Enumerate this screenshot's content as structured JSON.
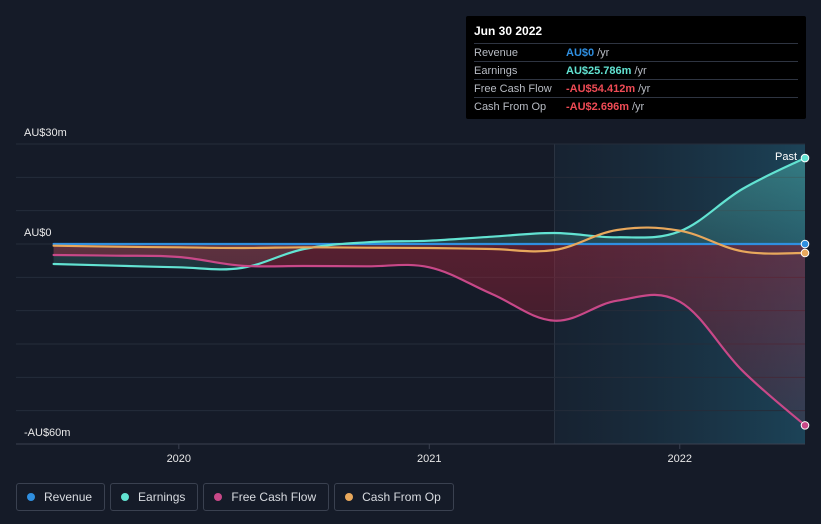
{
  "tooltip": {
    "date": "Jun 30 2022",
    "rows": [
      {
        "label": "Revenue",
        "value": "AU$0",
        "unit": "/yr",
        "color": "#2f8fe0"
      },
      {
        "label": "Earnings",
        "value": "AU$25.786m",
        "unit": "/yr",
        "color": "#62e3d2"
      },
      {
        "label": "Free Cash Flow",
        "value": "-AU$54.412m",
        "unit": "/yr",
        "color": "#ef4b55"
      },
      {
        "label": "Cash From Op",
        "value": "-AU$2.696m",
        "unit": "/yr",
        "color": "#ef4b55"
      }
    ]
  },
  "legend": [
    {
      "label": "Revenue",
      "color": "#2f8fe0"
    },
    {
      "label": "Earnings",
      "color": "#62e3d2"
    },
    {
      "label": "Free Cash Flow",
      "color": "#c84888"
    },
    {
      "label": "Cash From Op",
      "color": "#e8a85c"
    }
  ],
  "chart_data": {
    "type": "line",
    "y_unit": "AU$m",
    "ylim": [
      -60,
      30
    ],
    "y_tick_labels": [
      {
        "value": 30,
        "label": "AU$30m"
      },
      {
        "value": 0,
        "label": "AU$0"
      },
      {
        "value": -60,
        "label": "-AU$60m"
      }
    ],
    "x_tick_labels": [
      {
        "value": 2020.0,
        "label": "2020"
      },
      {
        "value": 2021.0,
        "label": "2021"
      },
      {
        "value": 2022.0,
        "label": "2022"
      }
    ],
    "xlim": [
      2019.35,
      2022.5
    ],
    "past_label": "Past",
    "past_start": 2021.5,
    "grid": true,
    "legend_position": "bottom-left",
    "series": [
      {
        "name": "Revenue",
        "color": "#2f8fe0",
        "x": [
          2019.5,
          2020.0,
          2020.5,
          2021.0,
          2021.5,
          2022.0,
          2022.5
        ],
        "y": [
          0,
          0,
          0,
          0,
          0,
          0,
          0
        ]
      },
      {
        "name": "Earnings",
        "color": "#62e3d2",
        "x": [
          2019.5,
          2019.75,
          2020.0,
          2020.25,
          2020.5,
          2020.75,
          2021.0,
          2021.25,
          2021.5,
          2021.75,
          2022.0,
          2022.25,
          2022.5
        ],
        "y": [
          -6,
          -6.5,
          -7,
          -7.2,
          -1.5,
          0.5,
          1.0,
          2.2,
          3.3,
          2.0,
          3.8,
          16.5,
          25.786
        ]
      },
      {
        "name": "Free Cash Flow",
        "color": "#c84888",
        "x": [
          2019.5,
          2019.75,
          2020.0,
          2020.25,
          2020.5,
          2020.75,
          2021.0,
          2021.25,
          2021.5,
          2021.75,
          2022.0,
          2022.25,
          2022.5
        ],
        "y": [
          -3.3,
          -3.5,
          -3.9,
          -6.5,
          -6.6,
          -6.7,
          -7.0,
          -15.0,
          -23.0,
          -17.0,
          -17.3,
          -38.0,
          -54.412
        ]
      },
      {
        "name": "Cash From Op",
        "color": "#e8a85c",
        "x": [
          2019.5,
          2019.75,
          2020.0,
          2020.25,
          2020.5,
          2020.75,
          2021.0,
          2021.25,
          2021.5,
          2021.75,
          2022.0,
          2022.25,
          2022.5
        ],
        "y": [
          -0.5,
          -0.8,
          -1.0,
          -1.2,
          -1.0,
          -1.1,
          -1.2,
          -1.5,
          -1.8,
          4.2,
          4.0,
          -2.2,
          -2.696
        ]
      }
    ]
  }
}
